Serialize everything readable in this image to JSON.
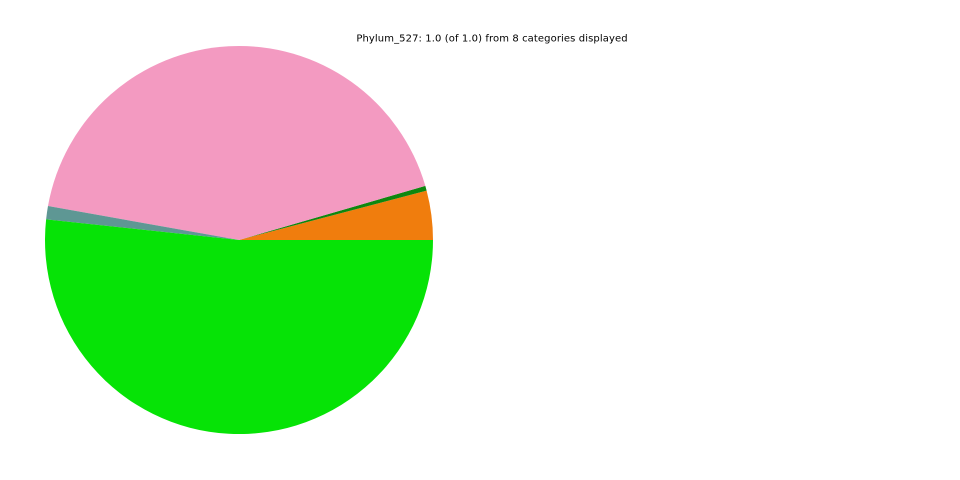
{
  "figure": {
    "background": "#ffffff"
  },
  "chart_data": {
    "type": "pie",
    "title": "Phylum_527: 1.0 (of 1.0) from 8 categories displayed",
    "displayed_fraction": "1.0",
    "total_fraction": "1.0",
    "categories_displayed": 8,
    "visible_slice_count": 5,
    "legend": "none",
    "data_labels": "none",
    "start_angle_deg": 0,
    "direction": "counterclockwise",
    "slices": [
      {
        "name": "orange",
        "fraction": 0.041,
        "color": "#f07d0d"
      },
      {
        "name": "dark-green",
        "fraction": 0.004,
        "color": "#0e870e"
      },
      {
        "name": "pink",
        "fraction": 0.427,
        "color": "#f39ac1"
      },
      {
        "name": "teal-gray",
        "fraction": 0.011,
        "color": "#5e9794"
      },
      {
        "name": "bright-green",
        "fraction": 0.517,
        "color": "#06e306"
      }
    ]
  }
}
